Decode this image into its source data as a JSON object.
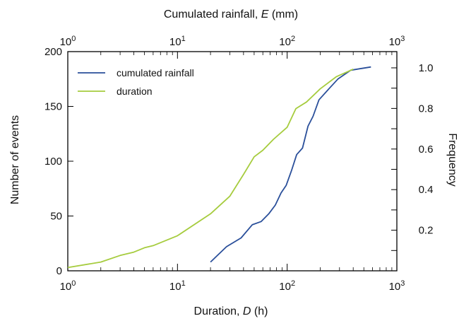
{
  "chart_data": {
    "type": "line",
    "x_bottom": {
      "label": "Duration, D (h)",
      "scale": "log",
      "range": [
        1,
        1000
      ],
      "tick_labels": [
        "10^0",
        "10^1",
        "10^2",
        "10^3"
      ]
    },
    "x_top": {
      "label": "Cumulated rainfall, E (mm)",
      "scale": "log",
      "range": [
        1,
        1000
      ],
      "tick_labels": [
        "10^0",
        "10^1",
        "10^2",
        "10^3"
      ]
    },
    "y_left": {
      "label": "Number of events",
      "range": [
        0,
        200
      ],
      "ticks": [
        "0",
        "50",
        "100",
        "150",
        "200"
      ]
    },
    "y_right": {
      "label": "Frequency",
      "range": [
        0,
        1.08
      ],
      "ticks": [
        "0.2",
        "0.4",
        "0.6",
        "0.8",
        "1.0"
      ]
    },
    "legend_position": "top-left",
    "series": [
      {
        "name": "cumulated rainfall",
        "axis": "top",
        "color": "#2a4f9a",
        "points": [
          [
            20,
            8
          ],
          [
            28,
            22
          ],
          [
            38,
            30
          ],
          [
            48,
            42
          ],
          [
            58,
            45
          ],
          [
            68,
            52
          ],
          [
            78,
            60
          ],
          [
            88,
            71
          ],
          [
            98,
            78
          ],
          [
            110,
            92
          ],
          [
            122,
            106
          ],
          [
            138,
            112
          ],
          [
            155,
            132
          ],
          [
            172,
            141
          ],
          [
            195,
            156
          ],
          [
            240,
            166
          ],
          [
            290,
            175
          ],
          [
            380,
            183
          ],
          [
            500,
            185
          ],
          [
            580,
            186
          ]
        ]
      },
      {
        "name": "duration",
        "axis": "bottom",
        "color": "#a6cc3e",
        "points": [
          [
            1,
            3
          ],
          [
            2,
            8
          ],
          [
            3,
            14
          ],
          [
            4,
            17
          ],
          [
            5,
            21
          ],
          [
            6,
            23
          ],
          [
            10,
            32
          ],
          [
            20,
            52
          ],
          [
            30,
            68
          ],
          [
            40,
            88
          ],
          [
            50,
            104
          ],
          [
            60,
            110
          ],
          [
            75,
            120
          ],
          [
            100,
            131
          ],
          [
            120,
            148
          ],
          [
            150,
            154
          ],
          [
            200,
            166
          ],
          [
            280,
            177
          ],
          [
            400,
            184
          ]
        ]
      }
    ]
  }
}
